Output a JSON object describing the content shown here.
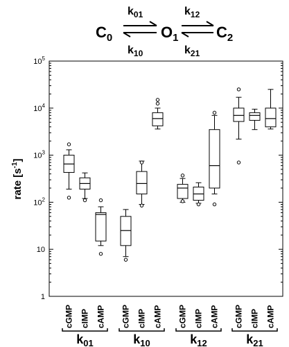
{
  "scheme": {
    "states": [
      "C",
      "0",
      "O",
      "1",
      "C",
      "2"
    ],
    "rates": [
      {
        "main": "k",
        "sub": "01"
      },
      {
        "main": "k",
        "sub": "10"
      },
      {
        "main": "k",
        "sub": "12"
      },
      {
        "main": "k",
        "sub": "21"
      }
    ]
  },
  "chart_data": {
    "type": "box",
    "ylabel_main": "rate [s",
    "ylabel_sup": "-1",
    "ylabel_end": "]",
    "yscale": "log",
    "ylim": [
      1,
      100000
    ],
    "yticks": [
      {
        "base": "1",
        "exp": ""
      },
      {
        "base": "10",
        "exp": ""
      },
      {
        "base": "10",
        "exp": "2"
      },
      {
        "base": "10",
        "exp": "3"
      },
      {
        "base": "10",
        "exp": "4"
      },
      {
        "base": "10",
        "exp": "5"
      }
    ],
    "categories": [
      "cGMP",
      "cIMP",
      "cAMP"
    ],
    "groups": [
      {
        "main": "k",
        "sub": "01",
        "boxes": [
          {
            "category": "cGMP",
            "whisker_low": 190,
            "q1": 430,
            "median": 650,
            "q3": 1000,
            "whisker_high": 1300,
            "outliers": [
              125,
              1700
            ]
          },
          {
            "category": "cIMP",
            "whisker_low": 120,
            "q1": 190,
            "median": 250,
            "q3": 330,
            "whisker_high": 420,
            "outliers": [
              110
            ]
          },
          {
            "category": "cAMP",
            "whisker_low": 12,
            "q1": 15,
            "median": 55,
            "q3": 60,
            "whisker_high": 80,
            "outliers": [
              8,
              110
            ]
          }
        ]
      },
      {
        "main": "k",
        "sub": "10",
        "boxes": [
          {
            "category": "cGMP",
            "whisker_low": 7,
            "q1": 12,
            "median": 25,
            "q3": 50,
            "whisker_high": 70,
            "outliers": [
              6
            ]
          },
          {
            "category": "cIMP",
            "whisker_low": 90,
            "q1": 150,
            "median": 250,
            "q3": 450,
            "whisker_high": 750,
            "outliers": [
              85,
              700
            ]
          },
          {
            "category": "cAMP",
            "whisker_low": 3600,
            "q1": 4200,
            "median": 6000,
            "q3": 8000,
            "whisker_high": 10000,
            "outliers": [
              15000,
              12500
            ]
          }
        ]
      },
      {
        "main": "k",
        "sub": "12",
        "boxes": [
          {
            "category": "cGMP",
            "whisker_low": 100,
            "q1": 120,
            "median": 200,
            "q3": 240,
            "whisker_high": 320,
            "outliers": [
              105,
              370
            ]
          },
          {
            "category": "cIMP",
            "whisker_low": 95,
            "q1": 110,
            "median": 150,
            "q3": 210,
            "whisker_high": 260,
            "outliers": [
              90
            ]
          },
          {
            "category": "cAMP",
            "whisker_low": 150,
            "q1": 200,
            "median": 600,
            "q3": 3500,
            "whisker_high": 7000,
            "outliers": [
              90,
              8000
            ]
          }
        ]
      },
      {
        "main": "k",
        "sub": "21",
        "boxes": [
          {
            "category": "cGMP",
            "whisker_low": 2200,
            "q1": 5200,
            "median": 7000,
            "q3": 10000,
            "whisker_high": 17000,
            "outliers": [
              700,
              25000
            ]
          },
          {
            "category": "cIMP",
            "whisker_low": 3500,
            "q1": 5500,
            "median": 7000,
            "q3": 8000,
            "whisker_high": 9500,
            "outliers": []
          },
          {
            "category": "cAMP",
            "whisker_low": 3600,
            "q1": 4000,
            "median": 6000,
            "q3": 10000,
            "whisker_high": 25000,
            "outliers": []
          }
        ]
      }
    ]
  },
  "colors": {
    "stroke": "#000000",
    "background": "#ffffff"
  }
}
